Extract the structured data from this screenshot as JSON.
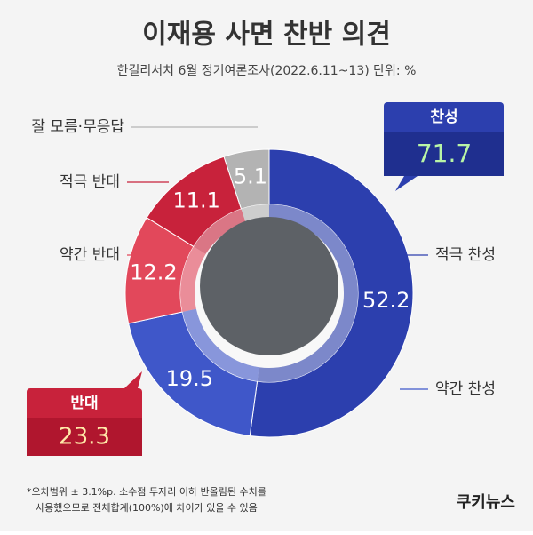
{
  "chart_data": {
    "type": "pie",
    "title": "이재용 사면 찬반 의견",
    "subtitle": "한길리서치 6월 정기여론조사(2022.6.11~13) 단위: %",
    "categories": [
      "적극 찬성",
      "약간 찬성",
      "약간 반대",
      "적극 반대",
      "잘 모름·무응답"
    ],
    "values": [
      52.2,
      19.5,
      12.2,
      11.1,
      5.1
    ],
    "colors": [
      "#2c3fae",
      "#3f57c9",
      "#e2485b",
      "#c8223b",
      "#b3b3b3"
    ],
    "summary": [
      {
        "label": "찬성",
        "value": 71.7
      },
      {
        "label": "반대",
        "value": 23.3
      }
    ]
  },
  "footnote": [
    "*오차범위 ± 3.1%p. 소수점 두자리 이하 반올림된 수치를",
    "사용했으므로 전체합계(100%)에 차이가 있을 수 있음"
  ],
  "logo": "쿠키뉴스"
}
